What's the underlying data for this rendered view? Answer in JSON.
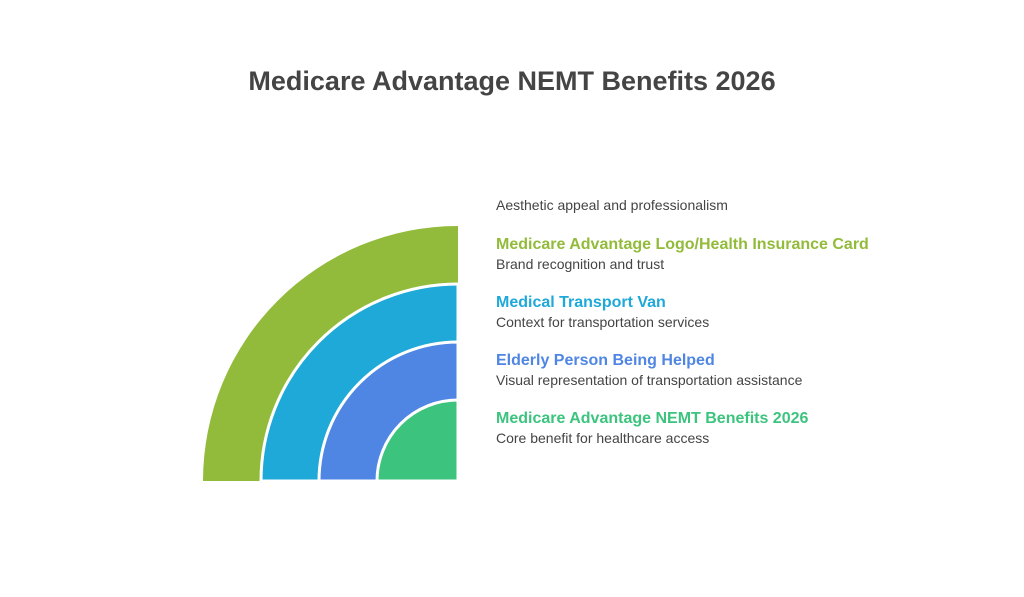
{
  "title": "Medicare Advantage NEMT Benefits 2026",
  "top_note": "Aesthetic appeal and professionalism",
  "layers": [
    {
      "title": "Medicare Advantage Logo/Health Insurance Card",
      "desc": "Brand recognition and trust",
      "color": "#93bb3b"
    },
    {
      "title": "Medical Transport Van",
      "desc": "Context for transportation services",
      "color": "#1ea9d9"
    },
    {
      "title": "Elderly Person Being Helped",
      "desc": "Visual representation of transportation assistance",
      "color": "#4f86e3"
    },
    {
      "title": "Medicare Advantage NEMT Benefits 2026",
      "desc": "Core benefit for healthcare access",
      "color": "#3cc47f"
    }
  ]
}
